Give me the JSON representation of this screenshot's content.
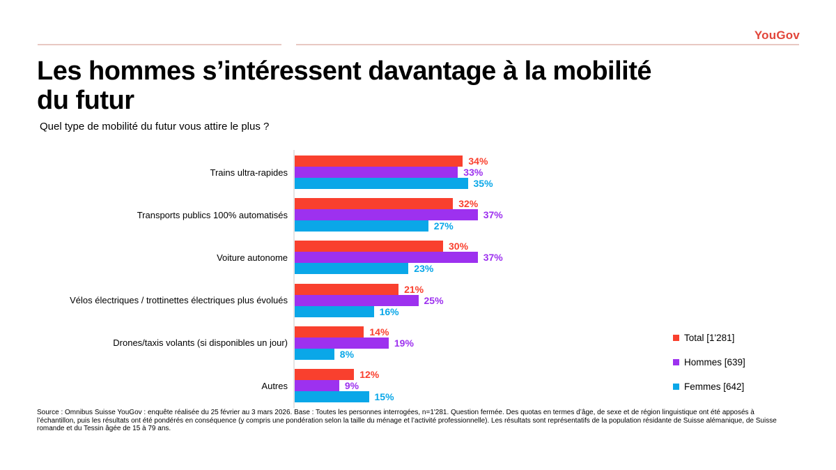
{
  "brand": {
    "logo": "YouGov",
    "color": "#e2453a"
  },
  "header": {
    "title": "Les hommes s’intéressent davantage à la mobilité du futur",
    "subtitle": "Quel type de mobilité du futur vous attire le plus ?"
  },
  "chart_data": {
    "type": "bar",
    "orientation": "horizontal",
    "value_suffix": "%",
    "xlim": [
      0,
      40
    ],
    "grid": false,
    "legend_position": "right",
    "categories": [
      "Trains ultra-rapides",
      "Transports publics 100% automatisés",
      "Voiture autonome",
      "Vélos électriques / trottinettes électriques plus évolués",
      "Drones/taxis volants (si disponibles un jour)",
      "Autres"
    ],
    "series": [
      {
        "name": "Total [1'281]",
        "color": "#f9402e",
        "values": [
          34,
          32,
          30,
          21,
          14,
          12
        ]
      },
      {
        "name": "Hommes [639]",
        "color": "#9d31ef",
        "values": [
          33,
          37,
          37,
          25,
          19,
          9
        ]
      },
      {
        "name": "Femmes [642]",
        "color": "#0aa7e8",
        "values": [
          35,
          27,
          23,
          16,
          8,
          15
        ]
      }
    ]
  },
  "source": "Source : Omnibus Suisse YouGov : enquête réalisée du 25 février au 3 mars 2026. Base : Toutes les personnes interrogées, n=1'281. Question fermée. Des quotas en termes d’âge, de sexe et de région linguistique ont été apposés à l’échantillon, puis les résultats ont été pondérés en conséquence (y compris une pondération selon la taille du ménage et l’activité professionnelle). Les résultats sont représentatifs de la population résidante de Suisse alémanique, de Suisse romande et du Tessin âgée de 15 à 79 ans."
}
